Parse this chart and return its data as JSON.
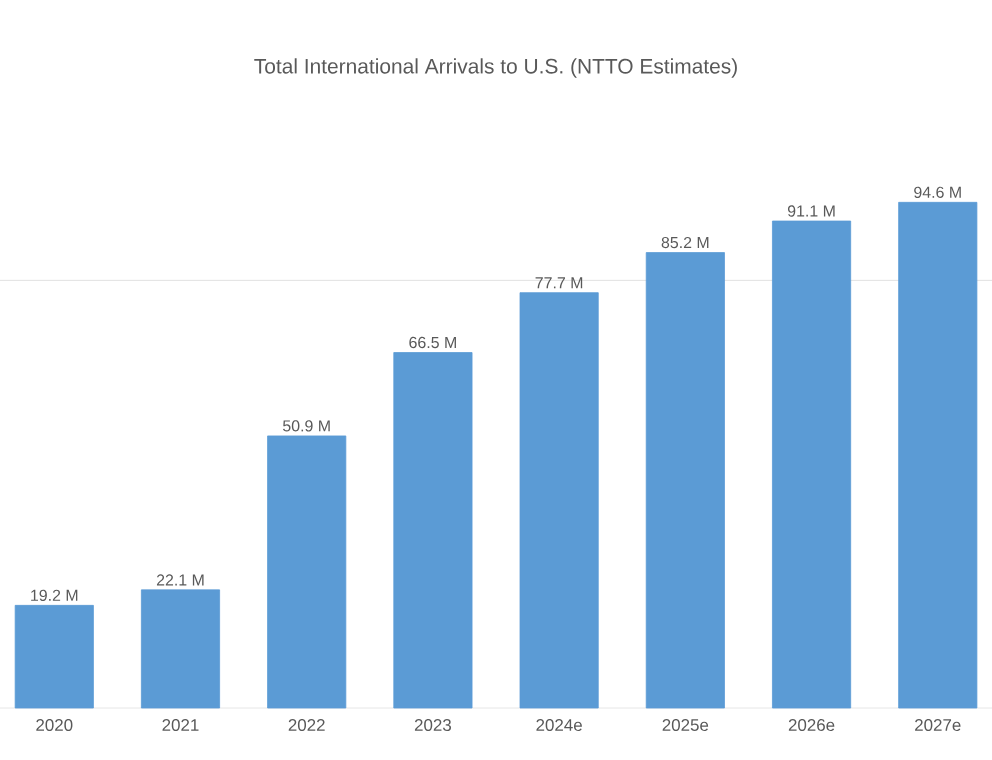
{
  "chart_data": {
    "type": "bar",
    "title": "Total International Arrivals to U.S. (NTTO Estimates)",
    "categories": [
      "2020",
      "2021",
      "2022",
      "2023",
      "2024e",
      "2025e",
      "2026e",
      "2027e"
    ],
    "values": [
      19.2,
      22.1,
      50.9,
      66.5,
      77.7,
      85.2,
      91.1,
      94.6
    ],
    "value_labels": [
      "19.2 M",
      "22.1 M",
      "50.9 M",
      "66.5 M",
      "77.7 M",
      "85.2 M",
      "91.1 M",
      "94.6 M"
    ],
    "color": "#5b9bd5",
    "ref_lines": [
      {
        "axis": "y",
        "value": 80,
        "color": "#d9d9d9"
      }
    ]
  }
}
